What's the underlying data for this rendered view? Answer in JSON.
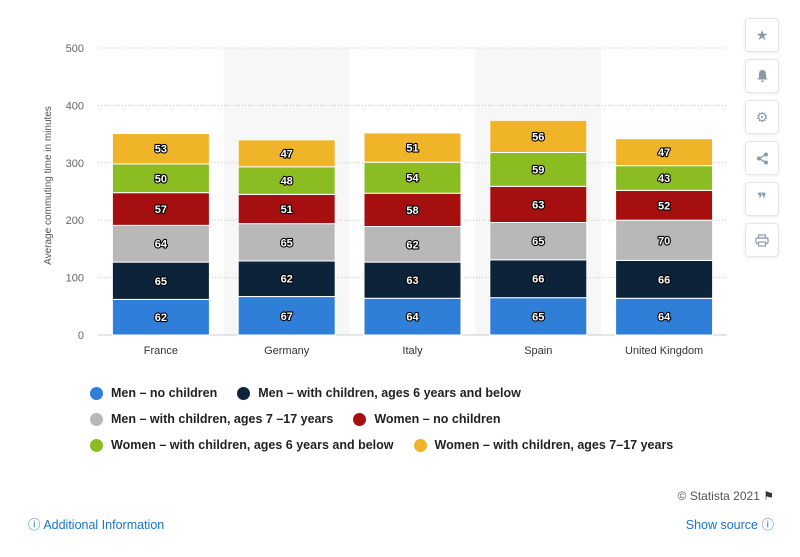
{
  "chart_data": {
    "type": "bar",
    "stacked": true,
    "categories": [
      "France",
      "Germany",
      "Italy",
      "Spain",
      "United Kingdom"
    ],
    "series": [
      {
        "name": "Men – no children",
        "color": "#2f7ed8",
        "values": [
          62,
          67,
          64,
          65,
          64
        ]
      },
      {
        "name": "Men – with children, ages 6 years and below",
        "color": "#0d233a",
        "values": [
          65,
          62,
          63,
          66,
          66
        ]
      },
      {
        "name": "Men – with children, ages 7 –17 years",
        "color": "#b8b8b8",
        "values": [
          64,
          65,
          62,
          65,
          70
        ]
      },
      {
        "name": "Women – no children",
        "color": "#a50f0f",
        "values": [
          57,
          51,
          58,
          63,
          52
        ]
      },
      {
        "name": "Women – with children, ages 6 years and below",
        "color": "#8bbc21",
        "values": [
          50,
          48,
          54,
          59,
          43
        ]
      },
      {
        "name": "Women – with children, ages 7–17 years",
        "color": "#f0b429",
        "values": [
          53,
          47,
          51,
          56,
          47
        ]
      }
    ],
    "ylabel": "Average commuting time in minutes",
    "ylim": [
      0,
      500
    ],
    "yticks": [
      0,
      100,
      200,
      300,
      400,
      500
    ],
    "grid": true,
    "legend_position": "bottom"
  },
  "footer": {
    "credits": "© Statista 2021",
    "additional_info": "Additional Information",
    "show_source": "Show source"
  },
  "toolbar": {
    "icons": [
      "star-icon",
      "bell-icon",
      "gear-icon",
      "share-icon",
      "quote-icon",
      "print-icon"
    ]
  }
}
